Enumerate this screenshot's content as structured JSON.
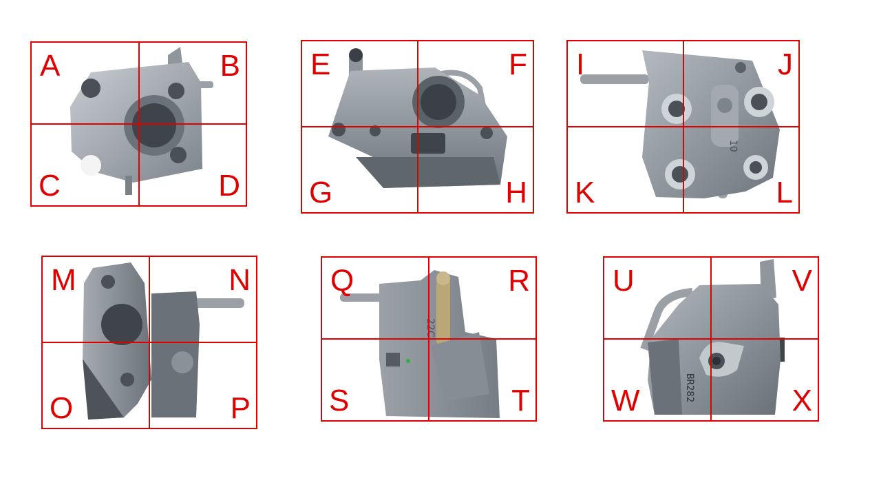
{
  "colors": {
    "grid": "#e00000",
    "metal_light": "#b8bec4",
    "metal_mid": "#8a9198",
    "metal_dark": "#5b6168"
  },
  "panels": [
    {
      "view": "view-1",
      "labels": [
        "A",
        "B",
        "C",
        "D"
      ]
    },
    {
      "view": "view-2",
      "labels": [
        "E",
        "F",
        "G",
        "H"
      ]
    },
    {
      "view": "view-3",
      "labels": [
        "I",
        "J",
        "K",
        "L"
      ]
    },
    {
      "view": "view-4",
      "labels": [
        "M",
        "N",
        "O",
        "P"
      ]
    },
    {
      "view": "view-5",
      "labels": [
        "Q",
        "R",
        "S",
        "T"
      ]
    },
    {
      "view": "view-6",
      "labels": [
        "U",
        "V",
        "W",
        "X"
      ]
    }
  ],
  "markings": {
    "view_3_stamp": "10",
    "view_5_stamp": "22C",
    "view_6_stamp": "BR282"
  }
}
